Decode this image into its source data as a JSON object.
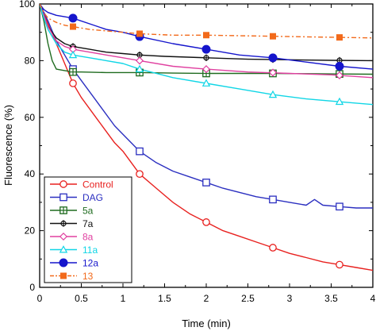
{
  "chart_data": {
    "type": "line",
    "title": "",
    "xlabel": "Time (min)",
    "ylabel": "Fluorescence (%)",
    "xlim": [
      0,
      4
    ],
    "ylim": [
      0,
      100
    ],
    "xticks": [
      "0",
      "0.5",
      "1",
      "1.5",
      "2",
      "2.5",
      "3",
      "3.5",
      "4"
    ],
    "yticks": [
      "0",
      "20",
      "40",
      "60",
      "80",
      "100"
    ],
    "grid": false,
    "legend_position": "bottom-left",
    "series": [
      {
        "name": "Control",
        "color": "#e8211f",
        "marker": "open-circle",
        "dash": "solid",
        "x": [
          0,
          0.05,
          0.1,
          0.2,
          0.3,
          0.4,
          0.5,
          0.7,
          0.9,
          1.0,
          1.2,
          1.4,
          1.6,
          1.8,
          2.0,
          2.2,
          2.4,
          2.6,
          2.8,
          3.0,
          3.2,
          3.4,
          3.6,
          3.8,
          4.0
        ],
        "y": [
          100,
          97,
          93,
          86,
          79,
          72,
          67,
          59,
          51,
          48,
          40,
          35,
          30,
          26,
          23,
          20,
          18,
          16,
          14,
          12,
          10.5,
          9,
          8,
          7,
          6
        ],
        "markers_x": [
          0.4,
          1.2,
          2.0,
          2.8,
          3.6
        ],
        "markers_y": [
          72,
          40,
          23,
          14,
          8
        ]
      },
      {
        "name": "DAG",
        "color": "#2b2fc0",
        "marker": "open-square",
        "dash": "solid",
        "x": [
          0,
          0.05,
          0.1,
          0.2,
          0.3,
          0.4,
          0.5,
          0.7,
          0.9,
          1.0,
          1.2,
          1.4,
          1.6,
          1.8,
          2.0,
          2.2,
          2.4,
          2.6,
          2.8,
          3.0,
          3.2,
          3.3,
          3.4,
          3.6,
          3.8,
          4.0
        ],
        "y": [
          100,
          97,
          94,
          87,
          82,
          77,
          73,
          65,
          57,
          54,
          48,
          44,
          41,
          39,
          37,
          35,
          33.5,
          32,
          31,
          30,
          29,
          31,
          29,
          28.5,
          28,
          28
        ],
        "markers_x": [
          0.4,
          1.2,
          2.0,
          2.8,
          3.6
        ],
        "markers_y": [
          77,
          48,
          37,
          31,
          28.5
        ]
      },
      {
        "name": "5a",
        "color": "#1f6b1f",
        "marker": "square-plus",
        "dash": "solid",
        "x": [
          0,
          0.05,
          0.1,
          0.15,
          0.2,
          0.3,
          0.4,
          0.5,
          0.8,
          1.2,
          1.6,
          2.0,
          2.4,
          2.8,
          3.2,
          3.6,
          4.0
        ],
        "y": [
          100,
          94,
          86,
          80,
          77,
          76.5,
          76,
          76,
          75.8,
          75.8,
          75.6,
          75.5,
          75.5,
          75.5,
          75.4,
          75.3,
          75.2
        ],
        "markers_x": [
          0.4,
          1.2,
          2.0,
          2.8,
          3.6
        ],
        "markers_y": [
          76,
          75.8,
          75.5,
          75.5,
          75.3
        ]
      },
      {
        "name": "7a",
        "color": "#111111",
        "marker": "circle-plus",
        "dash": "solid",
        "x": [
          0,
          0.05,
          0.1,
          0.2,
          0.3,
          0.4,
          0.6,
          0.8,
          1.0,
          1.2,
          1.5,
          2.0,
          2.5,
          3.0,
          3.5,
          4.0
        ],
        "y": [
          100,
          96,
          92,
          88,
          86,
          85,
          84,
          83,
          82.5,
          82,
          81.5,
          81,
          80.5,
          80.3,
          80.1,
          80
        ],
        "markers_x": [
          0.4,
          1.2,
          2.0,
          2.8,
          3.6
        ],
        "markers_y": [
          85,
          82,
          81,
          80.4,
          80.1
        ]
      },
      {
        "name": "8a",
        "color": "#e040a0",
        "marker": "open-diamond",
        "dash": "solid",
        "x": [
          0,
          0.05,
          0.1,
          0.2,
          0.3,
          0.4,
          0.6,
          0.8,
          1.0,
          1.2,
          1.6,
          2.0,
          2.5,
          3.0,
          3.5,
          4.0
        ],
        "y": [
          100,
          96,
          92,
          87,
          85,
          84,
          83,
          82,
          81,
          80,
          78,
          77,
          76,
          75.5,
          75,
          74
        ],
        "markers_x": [
          0.4,
          1.2,
          2.0,
          2.8,
          3.6
        ],
        "markers_y": [
          84,
          80,
          77,
          75.8,
          74.8
        ]
      },
      {
        "name": "11a",
        "color": "#11d6e6",
        "marker": "open-triangle",
        "dash": "solid",
        "x": [
          0,
          0.05,
          0.1,
          0.2,
          0.3,
          0.4,
          0.6,
          0.8,
          1.0,
          1.2,
          1.6,
          2.0,
          2.4,
          2.8,
          3.2,
          3.6,
          4.0
        ],
        "y": [
          100,
          95,
          91,
          86,
          83,
          82,
          81,
          80,
          79,
          77,
          74,
          72,
          70,
          68,
          66.5,
          65.5,
          64.5
        ],
        "markers_x": [
          0.4,
          1.2,
          2.0,
          2.8,
          3.6
        ],
        "markers_y": [
          82,
          77,
          72,
          68,
          65.5
        ]
      },
      {
        "name": "12a",
        "color": "#1515cc",
        "marker": "filled-circle",
        "dash": "solid",
        "x": [
          0,
          0.05,
          0.1,
          0.2,
          0.3,
          0.4,
          0.6,
          0.8,
          1.0,
          1.2,
          1.6,
          2.0,
          2.4,
          2.8,
          3.2,
          3.6,
          4.0
        ],
        "y": [
          100,
          98,
          97,
          96,
          95.5,
          95,
          93,
          91,
          90,
          88.5,
          86,
          84,
          82,
          81,
          79.5,
          78,
          77
        ],
        "markers_x": [
          0.4,
          1.2,
          2.0,
          2.8,
          3.6
        ],
        "markers_y": [
          95,
          88.5,
          84,
          81,
          78
        ]
      },
      {
        "name": "13",
        "color": "#f26a1b",
        "marker": "filled-square",
        "dash": "dashdot",
        "x": [
          0,
          0.05,
          0.1,
          0.2,
          0.3,
          0.4,
          0.6,
          0.8,
          1.0,
          1.2,
          1.6,
          2.0,
          2.4,
          2.8,
          3.2,
          3.6,
          4.0
        ],
        "y": [
          100,
          97,
          95,
          93.5,
          92.5,
          92,
          91,
          90.5,
          90,
          89.5,
          89,
          89,
          88.8,
          88.6,
          88.4,
          88.2,
          88
        ],
        "markers_x": [
          0.4,
          1.2,
          2.0,
          2.8,
          3.6
        ],
        "markers_y": [
          92,
          89.5,
          89,
          88.6,
          88.2
        ]
      }
    ]
  }
}
